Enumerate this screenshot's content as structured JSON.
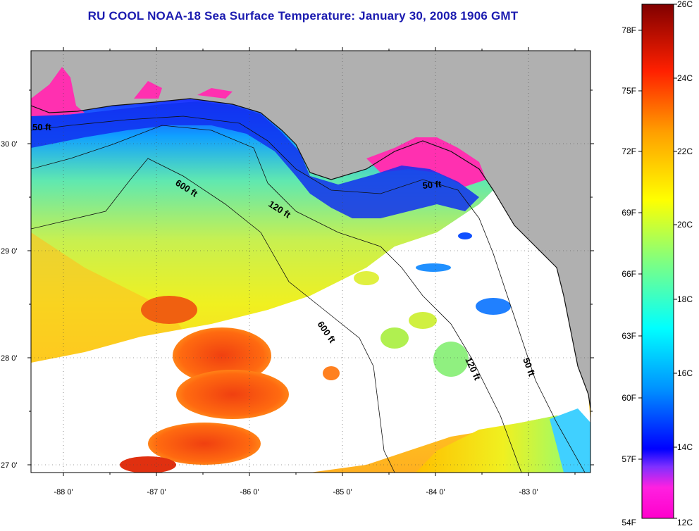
{
  "title": "RU COOL  NOAA-18  Sea Surface Temperature:  January 30, 2008 1906 GMT",
  "map": {
    "lon_ticks": [
      "-88 0'",
      "-87 0'",
      "-86 0'",
      "-85 0'",
      "-84 0'",
      "-83 0'"
    ],
    "lat_ticks": [
      "30 0'",
      "29 0'",
      "28 0'",
      "27 0'"
    ],
    "contour_labels": {
      "c50_west": "50 ft",
      "c600_north": "600 ft",
      "c120_north": "120 ft",
      "c50_east": "50 ft",
      "c600_south": "600 ft",
      "c120_south": "120 ft",
      "c50_south": "50 ft"
    },
    "colors": {
      "land": "#b0b0b0",
      "cloud": "#ffffff",
      "coast": "#111111"
    }
  },
  "colorbar": {
    "fahrenheit_labels": [
      "78F",
      "75F",
      "72F",
      "69F",
      "66F",
      "63F",
      "60F",
      "57F",
      "54F"
    ],
    "celsius_labels": [
      "26C",
      "24C",
      "22C",
      "20C",
      "18C",
      "16C",
      "14C",
      "12C"
    ],
    "colors": [
      "#ff00cc",
      "#8000ff",
      "#0000ff",
      "#00a0ff",
      "#00ffff",
      "#80ff80",
      "#ffff00",
      "#ffa000",
      "#ff3000",
      "#c00000",
      "#800000"
    ]
  }
}
